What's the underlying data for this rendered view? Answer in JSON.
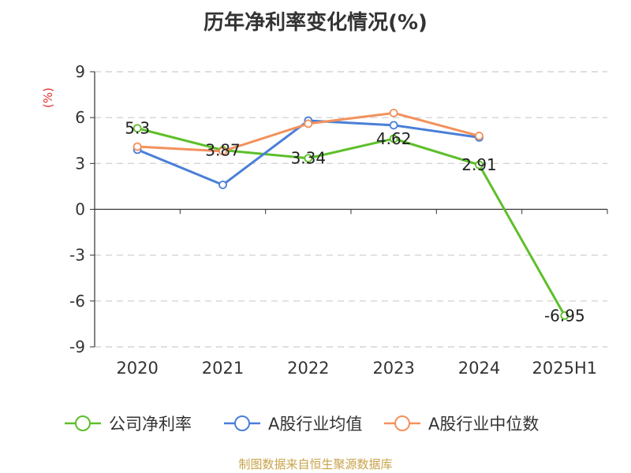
{
  "chart_data": {
    "type": "line",
    "title": "历年净利率变化情况(%)",
    "unit_label": "(%)",
    "categories": [
      "2020",
      "2021",
      "2022",
      "2023",
      "2024",
      "2025H1"
    ],
    "y_ticks": [
      9,
      6,
      3,
      0,
      -3,
      -6,
      -9
    ],
    "ylim": [
      -9,
      9
    ],
    "grid": true,
    "legend_position": "bottom",
    "series": [
      {
        "name": "公司净利率",
        "color": "#5dbf2a",
        "values": [
          5.3,
          3.87,
          3.34,
          4.62,
          2.91,
          -6.95
        ],
        "labels": [
          "5.3",
          "3.87",
          "3.34",
          "4.62",
          "2.91",
          "-6.95"
        ]
      },
      {
        "name": "A股行业均值",
        "color": "#4a7fd8",
        "values": [
          3.9,
          1.6,
          5.8,
          5.5,
          4.7,
          null
        ]
      },
      {
        "name": "A股行业中位数",
        "color": "#f3915c",
        "values": [
          4.1,
          3.8,
          5.6,
          6.3,
          4.8,
          null
        ]
      }
    ]
  },
  "source_note": "制图数据来自恒生聚源数据库"
}
